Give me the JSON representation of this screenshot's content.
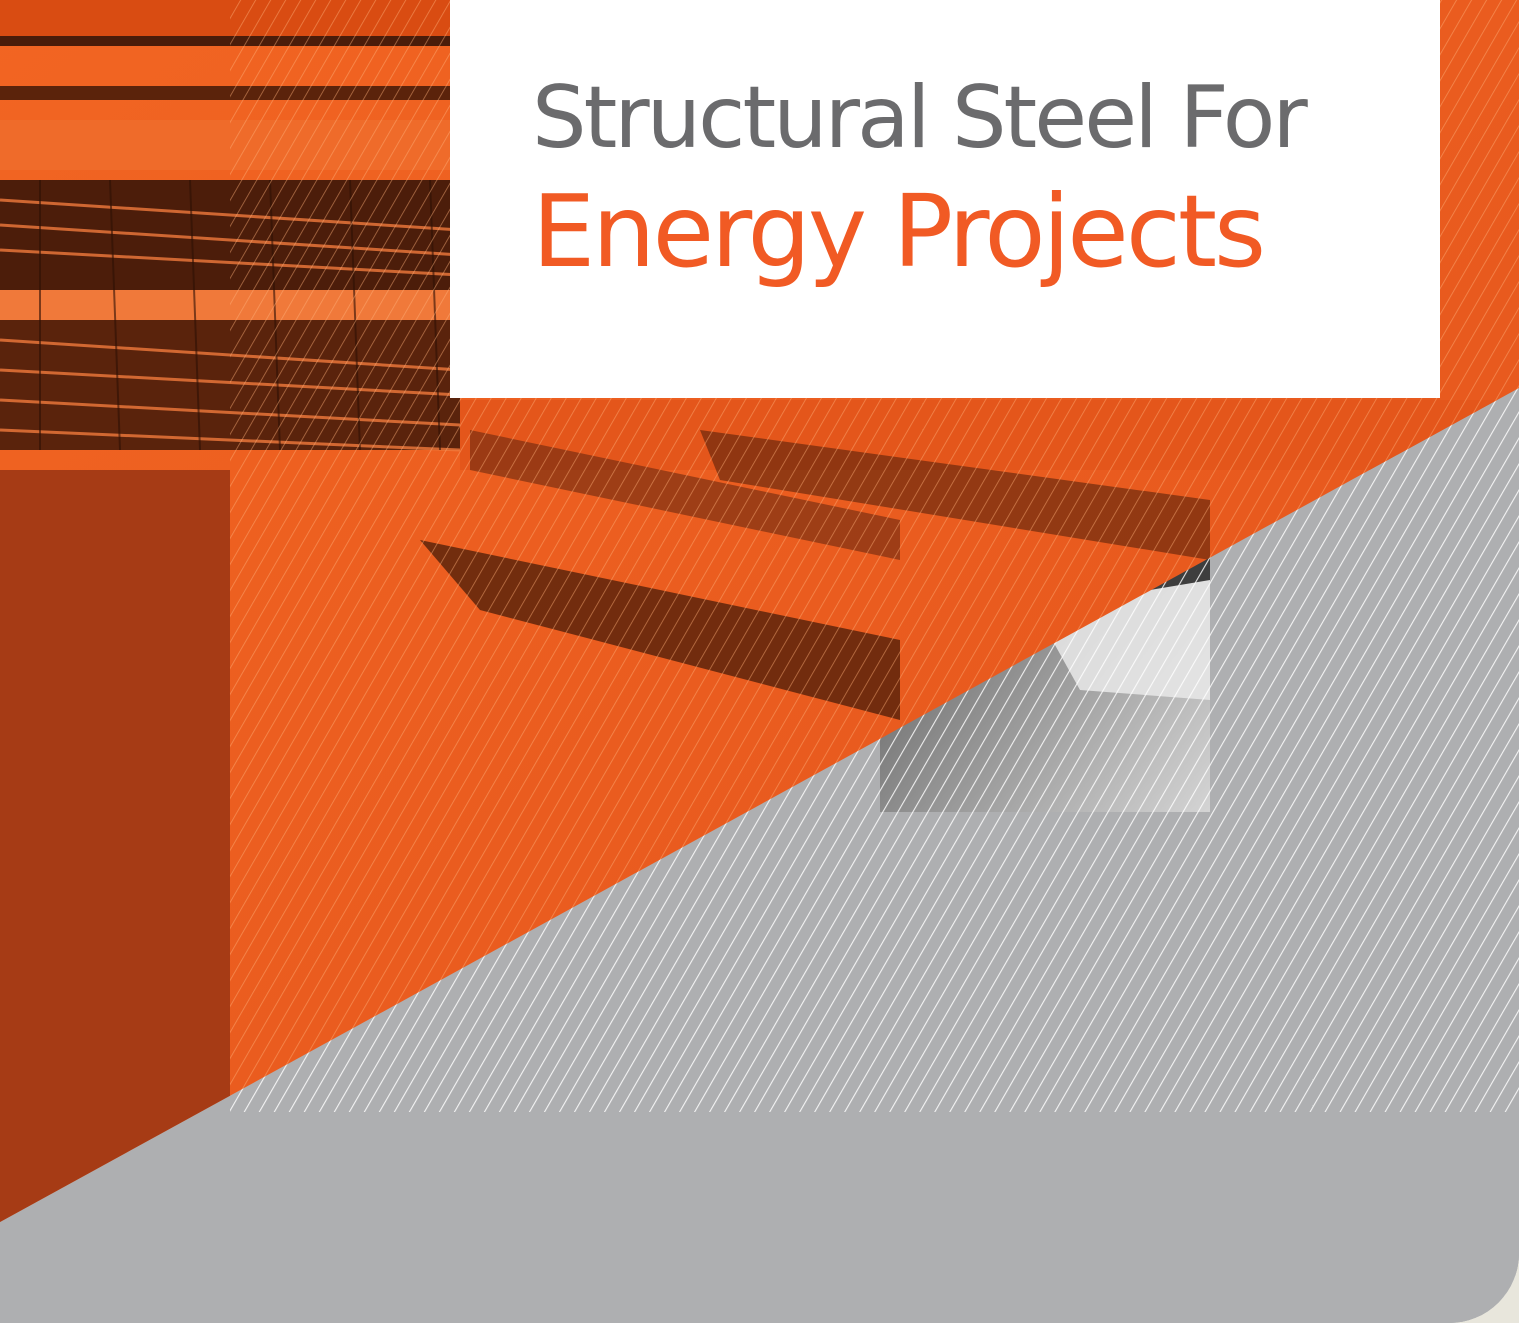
{
  "cover": {
    "title_line1": "Structural Steel For",
    "title_line2": "Energy Projects"
  },
  "colors": {
    "accent_orange": "#f15a24",
    "dark_orange": "#a63b15",
    "title_gray": "#6b6b6d",
    "panel_gray": "#aeafb1",
    "page_cream": "#e8e6dc"
  }
}
